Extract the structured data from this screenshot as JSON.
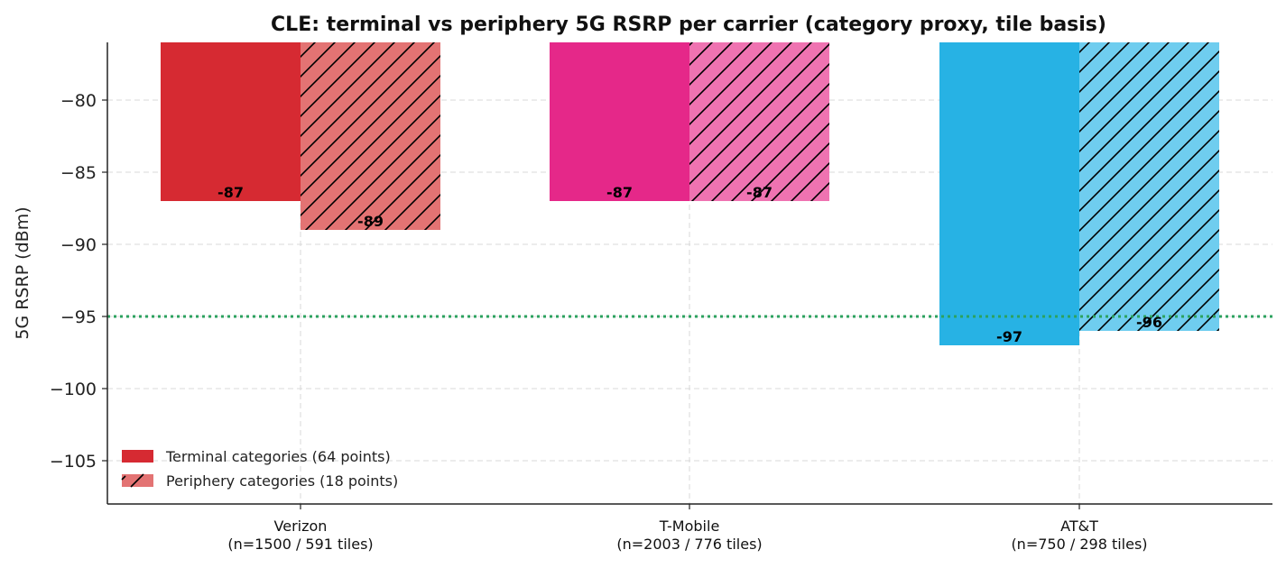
{
  "chart_data": {
    "type": "bar",
    "title": "CLE: terminal vs periphery 5G RSRP per carrier (category proxy, tile basis)",
    "xlabel": "",
    "ylabel": "5G RSRP (dBm)",
    "ylim": [
      -108,
      -76
    ],
    "yticks": [
      "−80",
      "−85",
      "−90",
      "−95",
      "−100",
      "−105"
    ],
    "ytick_values": [
      -80,
      -85,
      -90,
      -95,
      -100,
      -105
    ],
    "grid": true,
    "legend_position": "lower-left",
    "reference_line": {
      "value": -95,
      "color": "#2ca25f",
      "style": "dotted"
    },
    "categories": [
      {
        "name": "Verizon",
        "sub": "(n=1500 / 591 tiles)",
        "color": "#d62a32",
        "light": "#e37373"
      },
      {
        "name": "T-Mobile",
        "sub": "(n=2003 / 776 tiles)",
        "color": "#e52889",
        "light": "#ef73b1"
      },
      {
        "name": "AT&T",
        "sub": "(n=750 / 298 tiles)",
        "color": "#27b2e4",
        "light": "#6fcdef"
      }
    ],
    "series": [
      {
        "name": "Terminal categories (64 points)",
        "hatched": false,
        "values": [
          -87,
          -87,
          -97
        ],
        "labels": [
          "-87",
          "-87",
          "-97"
        ]
      },
      {
        "name": "Periphery categories (18 points)",
        "hatched": true,
        "values": [
          -89,
          -87,
          -96
        ],
        "labels": [
          "-89",
          "-87",
          "-96"
        ]
      }
    ]
  }
}
